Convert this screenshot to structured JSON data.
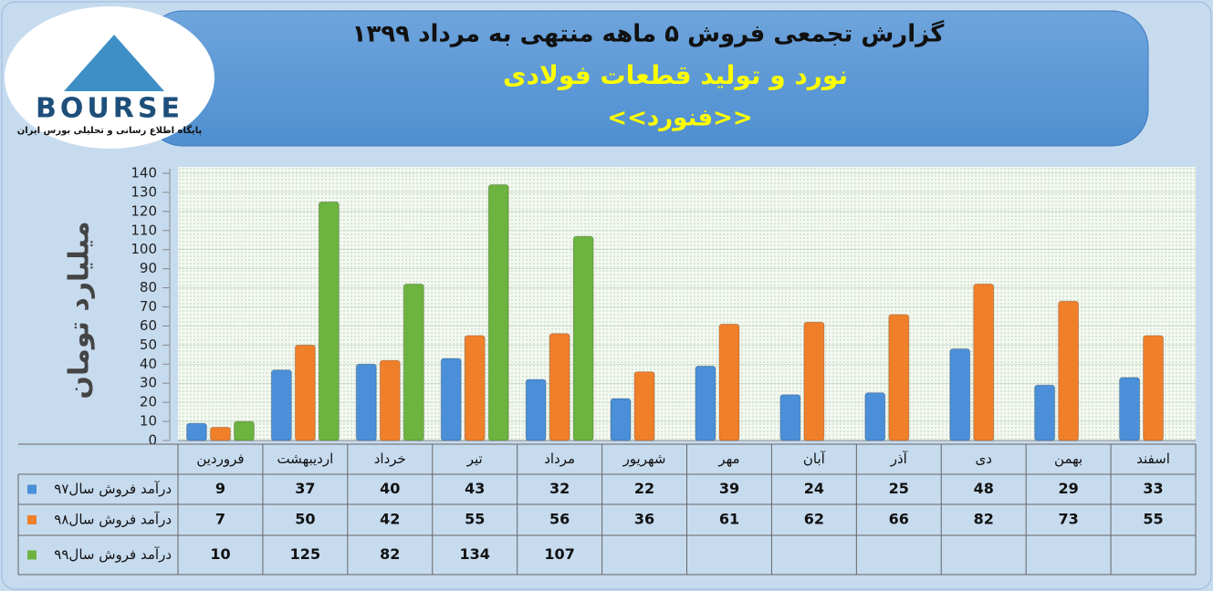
{
  "logo": {
    "name": "BOURSE",
    "tagline": "پایگاه اطلاع رسانی و تحلیلی بورس ایران"
  },
  "chart_data": {
    "type": "bar",
    "title": "گزارش تجمعی فروش  ۵ ماهه منتهی به مرداد ۱۳۹۹",
    "subtitle": "نورد و تولید قطعات فولادی",
    "annotation": "<<فنورد>>",
    "y_label": "میلیارد تومان",
    "categories": [
      "فروردین",
      "اردیبهشت",
      "خرداد",
      "تیر",
      "مرداد",
      "شهریور",
      "مهر",
      "آبان",
      "آذر",
      "دی",
      "بهمن",
      "اسفند"
    ],
    "series": [
      {
        "name": "درآمد فروش سال۹۷",
        "color": "#4a8fd8",
        "values": [
          9,
          37,
          40,
          43,
          32,
          22,
          39,
          24,
          25,
          48,
          29,
          33
        ]
      },
      {
        "name": "درآمد فروش سال۹۸",
        "color": "#f07f2a",
        "values": [
          7,
          50,
          42,
          55,
          56,
          36,
          61,
          62,
          66,
          82,
          73,
          55
        ]
      },
      {
        "name": "درآمد فروش سال۹۹",
        "color": "#6cb33f",
        "values": [
          10,
          125,
          82,
          134,
          107,
          null,
          null,
          null,
          null,
          null,
          null,
          null
        ]
      }
    ],
    "ylim": [
      0,
      140
    ],
    "yticks": [
      0,
      10,
      20,
      30,
      40,
      50,
      60,
      70,
      80,
      90,
      100,
      110,
      120,
      130,
      140
    ],
    "grid": true
  }
}
